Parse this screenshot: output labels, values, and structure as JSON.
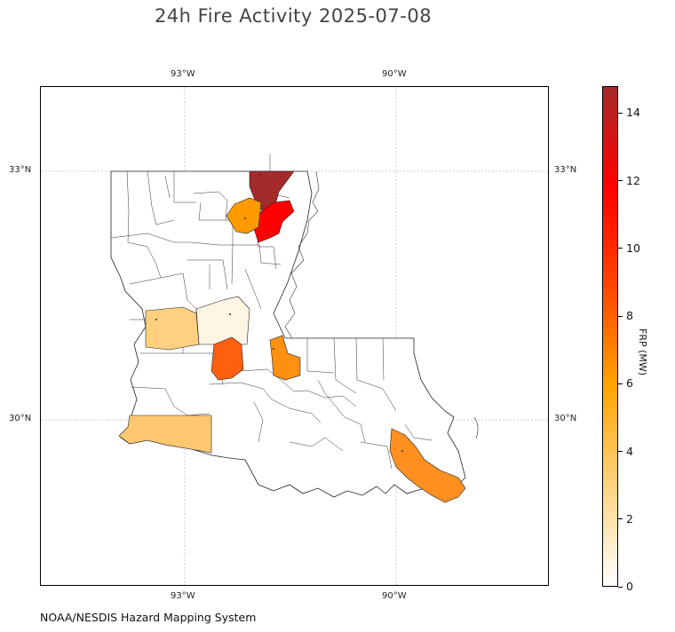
{
  "title": "24h Fire Activity 2025-07-08",
  "credit": "NOAA/NESDIS Hazard Mapping System",
  "map": {
    "gridlines": {
      "longitude_labels": [
        "93°W",
        "90°W"
      ],
      "latitude_labels": [
        "33°N",
        "30°N"
      ]
    },
    "fire_parishes": [
      {
        "name": "",
        "frp_mw": 14.8,
        "color": "#a52a2a"
      },
      {
        "name": "",
        "frp_mw": 10.8,
        "color": "#ff0000"
      },
      {
        "name": "",
        "frp_mw": 5.3,
        "color": "#ff9a00"
      },
      {
        "name": "",
        "frp_mw": 0.6,
        "color": "#fff5e4"
      },
      {
        "name": "",
        "frp_mw": 2.4,
        "color": "#fed080"
      },
      {
        "name": "",
        "frp_mw": 7.6,
        "color": "#ff6010"
      },
      {
        "name": "",
        "frp_mw": 5.6,
        "color": "#ff9010"
      },
      {
        "name": "",
        "frp_mw": 3.0,
        "color": "#ffc870"
      },
      {
        "name": "",
        "frp_mw": 5.6,
        "color": "#ff9020"
      }
    ]
  },
  "colorbar": {
    "label": "FRP (MW)",
    "ticks": [
      "0",
      "2",
      "4",
      "6",
      "8",
      "10",
      "12",
      "14"
    ],
    "min": 0,
    "max": 14.8,
    "colors": [
      "#ffffff",
      "#ffd37f",
      "#ffa500",
      "#ff4500",
      "#ff0000",
      "#a52a2a"
    ]
  }
}
